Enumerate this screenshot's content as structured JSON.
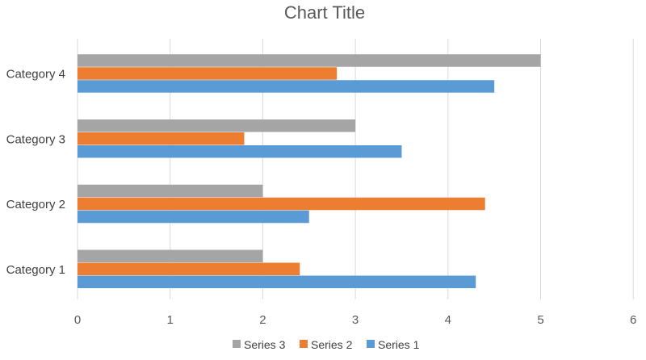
{
  "chart_data": {
    "type": "bar",
    "orientation": "horizontal",
    "title": "Chart Title",
    "categories": [
      "Category 1",
      "Category 2",
      "Category 3",
      "Category 4"
    ],
    "series": [
      {
        "name": "Series 1",
        "color": "#5b9bd5",
        "values": [
          4.3,
          2.5,
          3.5,
          4.5
        ]
      },
      {
        "name": "Series 2",
        "color": "#ed7d31",
        "values": [
          2.4,
          4.4,
          1.8,
          2.8
        ]
      },
      {
        "name": "Series 3",
        "color": "#a5a5a5",
        "values": [
          2,
          2,
          3,
          5
        ]
      }
    ],
    "xlim": [
      0,
      6
    ],
    "xticks": [
      "0",
      "1",
      "2",
      "3",
      "4",
      "5",
      "6"
    ],
    "grid": true,
    "legend_position": "bottom",
    "legend_order": [
      "Series 3",
      "Series 2",
      "Series 1"
    ]
  }
}
